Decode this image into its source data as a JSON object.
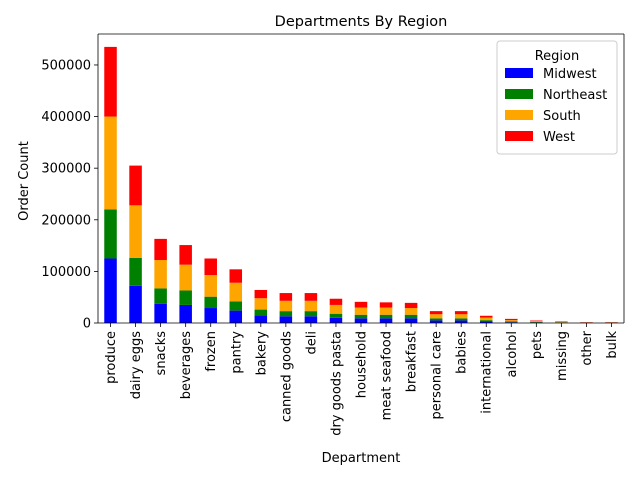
{
  "chart_data": {
    "type": "bar",
    "stacked": true,
    "title": "Departments By Region",
    "xlabel": "Department",
    "ylabel": "Order Count",
    "ylim": [
      0,
      560000
    ],
    "yticks": [
      0,
      100000,
      200000,
      300000,
      400000,
      500000
    ],
    "grid": false,
    "legend": {
      "title": "Region",
      "placement": "top-right"
    },
    "categories": [
      "produce",
      "dairy eggs",
      "snacks",
      "beverages",
      "frozen",
      "pantry",
      "bakery",
      "canned goods",
      "deli",
      "dry goods pasta",
      "household",
      "meat seafood",
      "breakfast",
      "personal care",
      "babies",
      "international",
      "alcohol",
      "pets",
      "missing",
      "other",
      "bulk"
    ],
    "series": [
      {
        "name": "Midwest",
        "color": "#0000ff",
        "values": [
          125000,
          72000,
          37000,
          35000,
          29000,
          24000,
          15000,
          13000,
          13000,
          10000,
          9000,
          9000,
          9000,
          5000,
          5000,
          3000,
          1500,
          1000,
          700,
          400,
          400
        ]
      },
      {
        "name": "Northeast",
        "color": "#008000",
        "values": [
          95000,
          54000,
          30000,
          28000,
          22000,
          18000,
          11000,
          10000,
          10000,
          8000,
          7000,
          7000,
          7000,
          4000,
          4000,
          2500,
          1500,
          800,
          600,
          300,
          300
        ]
      },
      {
        "name": "South",
        "color": "#ffa500",
        "values": [
          180000,
          102000,
          55000,
          50000,
          42000,
          36000,
          22000,
          20000,
          20000,
          17000,
          14000,
          14000,
          13000,
          8000,
          8000,
          5000,
          2500,
          2000,
          1000,
          500,
          600
        ]
      },
      {
        "name": "West",
        "color": "#ff0000",
        "values": [
          135000,
          77000,
          41000,
          38000,
          32000,
          26000,
          16000,
          15000,
          15000,
          12000,
          11000,
          10000,
          10000,
          6000,
          6000,
          3500,
          2500,
          1000,
          900,
          400,
          400
        ]
      }
    ]
  }
}
